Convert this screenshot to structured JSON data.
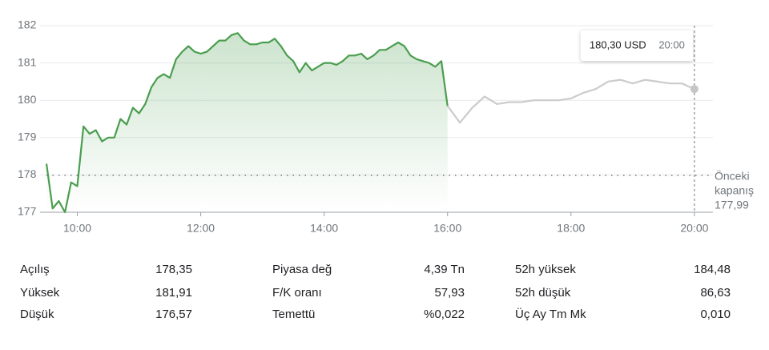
{
  "chart_data": {
    "type": "line",
    "xlim": [
      9.5,
      20.3
    ],
    "ylim": [
      177,
      182
    ],
    "yticks": [
      177,
      178,
      179,
      180,
      181,
      182
    ],
    "xticks": [
      {
        "value": 10,
        "label": "10:00"
      },
      {
        "value": 12,
        "label": "12:00"
      },
      {
        "value": 14,
        "label": "14:00"
      },
      {
        "value": 16,
        "label": "16:00"
      },
      {
        "value": 18,
        "label": "18:00"
      },
      {
        "value": 20,
        "label": "20:00"
      }
    ],
    "grid": true,
    "series": [
      {
        "color": "#4a9e4f",
        "area": true,
        "x": [
          9.5,
          9.6,
          9.7,
          9.8,
          9.9,
          10.0,
          10.1,
          10.2,
          10.3,
          10.4,
          10.5,
          10.6,
          10.7,
          10.8,
          10.9,
          11.0,
          11.1,
          11.2,
          11.3,
          11.4,
          11.5,
          11.6,
          11.7,
          11.8,
          11.9,
          12.0,
          12.1,
          12.2,
          12.3,
          12.4,
          12.5,
          12.6,
          12.7,
          12.8,
          12.9,
          13.0,
          13.1,
          13.2,
          13.3,
          13.4,
          13.5,
          13.6,
          13.7,
          13.8,
          13.9,
          14.0,
          14.1,
          14.2,
          14.3,
          14.4,
          14.5,
          14.6,
          14.7,
          14.8,
          14.9,
          15.0,
          15.1,
          15.2,
          15.3,
          15.4,
          15.5,
          15.6,
          15.7,
          15.8,
          15.9,
          16.0
        ],
        "values": [
          178.3,
          177.1,
          177.3,
          177.0,
          177.8,
          177.7,
          179.3,
          179.1,
          179.2,
          178.9,
          179.0,
          179.0,
          179.5,
          179.35,
          179.8,
          179.65,
          179.9,
          180.35,
          180.6,
          180.7,
          180.6,
          181.1,
          181.3,
          181.45,
          181.3,
          181.25,
          181.3,
          181.45,
          181.6,
          181.6,
          181.75,
          181.8,
          181.6,
          181.5,
          181.5,
          181.55,
          181.55,
          181.65,
          181.45,
          181.2,
          181.05,
          180.75,
          181.0,
          180.8,
          180.9,
          181.0,
          181.0,
          180.95,
          181.05,
          181.2,
          181.2,
          181.25,
          181.1,
          181.2,
          181.35,
          181.35,
          181.45,
          181.55,
          181.45,
          181.2,
          181.1,
          181.05,
          181.0,
          180.9,
          181.05,
          179.85
        ]
      },
      {
        "color": "#cccccc",
        "area": false,
        "x": [
          16.0,
          16.2,
          16.4,
          16.6,
          16.8,
          17.0,
          17.2,
          17.4,
          17.6,
          17.8,
          18.0,
          18.2,
          18.4,
          18.6,
          18.8,
          19.0,
          19.2,
          19.4,
          19.6,
          19.8,
          20.0
        ],
        "values": [
          179.85,
          179.4,
          179.8,
          180.1,
          179.9,
          179.95,
          179.95,
          180.0,
          180.0,
          180.0,
          180.05,
          180.2,
          180.3,
          180.5,
          180.55,
          180.45,
          180.55,
          180.5,
          180.45,
          180.45,
          180.3
        ]
      }
    ],
    "prev_close": {
      "value": 177.99,
      "label": "177,99"
    },
    "prev_close_title": [
      "Önceki",
      "kapanış"
    ],
    "tooltip": {
      "value": 180.3,
      "label": "180,30 USD",
      "x": {
        "value": 20,
        "label": "20:00"
      }
    }
  },
  "stats": [
    [
      [
        "Açılış",
        "178,35"
      ],
      [
        "Piyasa değ",
        "4,39 Tn"
      ],
      [
        "52h yüksek",
        "184,48"
      ]
    ],
    [
      [
        "Yüksek",
        "181,91"
      ],
      [
        "F/K oranı",
        "57,93"
      ],
      [
        "52h düşük",
        "86,63"
      ]
    ],
    [
      [
        "Düşük",
        "176,57"
      ],
      [
        "Temettü",
        "%0,022"
      ],
      [
        "Üç Ay Tm Mk",
        "0,010"
      ]
    ]
  ]
}
